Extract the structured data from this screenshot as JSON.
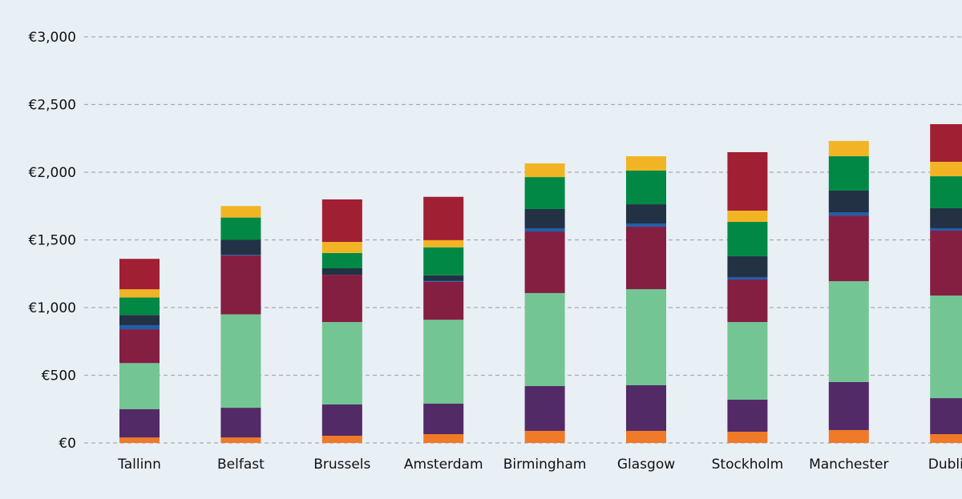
{
  "chart_data": {
    "type": "bar",
    "stacked": true,
    "title": "",
    "xlabel": "",
    "ylabel": "",
    "ylim": [
      0,
      3000
    ],
    "yticks": [
      0,
      500,
      1000,
      1500,
      2000,
      2500,
      3000
    ],
    "ytick_labels": [
      "€0",
      "€500",
      "€1,000",
      "€1,500",
      "€2,000",
      "€2,500",
      "€3,000"
    ],
    "grid": "horizontal dashed",
    "legend": "none",
    "categories": [
      "Tallinn",
      "Belfast",
      "Brussels",
      "Amsterdam",
      "Birmingham",
      "Glasgow",
      "Stockholm",
      "Manchester",
      "Dublin"
    ],
    "series": [
      {
        "color": "#f07a28",
        "values": [
          40,
          40,
          53,
          65,
          89,
          89,
          83,
          95,
          65
        ]
      },
      {
        "color": "#522a66",
        "values": [
          210,
          220,
          231,
          225,
          331,
          337,
          237,
          355,
          266
        ]
      },
      {
        "color": "#74c594",
        "values": [
          340,
          690,
          609,
          620,
          687,
          710,
          573,
          745,
          758
        ]
      },
      {
        "color": "#841f42",
        "values": [
          250,
          435,
          349,
          280,
          455,
          462,
          314,
          485,
          479
        ]
      },
      {
        "color": "#1f5fa8",
        "values": [
          30,
          5,
          0,
          6,
          24,
          23,
          18,
          24,
          18
        ]
      },
      {
        "color": "#223143",
        "values": [
          75,
          110,
          48,
          42,
          142,
          142,
          154,
          160,
          148
        ]
      },
      {
        "color": "#008844",
        "values": [
          130,
          165,
          113,
          207,
          236,
          249,
          254,
          254,
          236
        ]
      },
      {
        "color": "#f2b424",
        "values": [
          60,
          85,
          82,
          53,
          101,
          106,
          83,
          113,
          107
        ]
      },
      {
        "color": "#a11f33",
        "values": [
          225,
          0,
          314,
          320,
          0,
          0,
          432,
          0,
          278
        ]
      }
    ]
  },
  "colors": {
    "background": "#e8eff5",
    "grid": "#aaaaaa"
  }
}
